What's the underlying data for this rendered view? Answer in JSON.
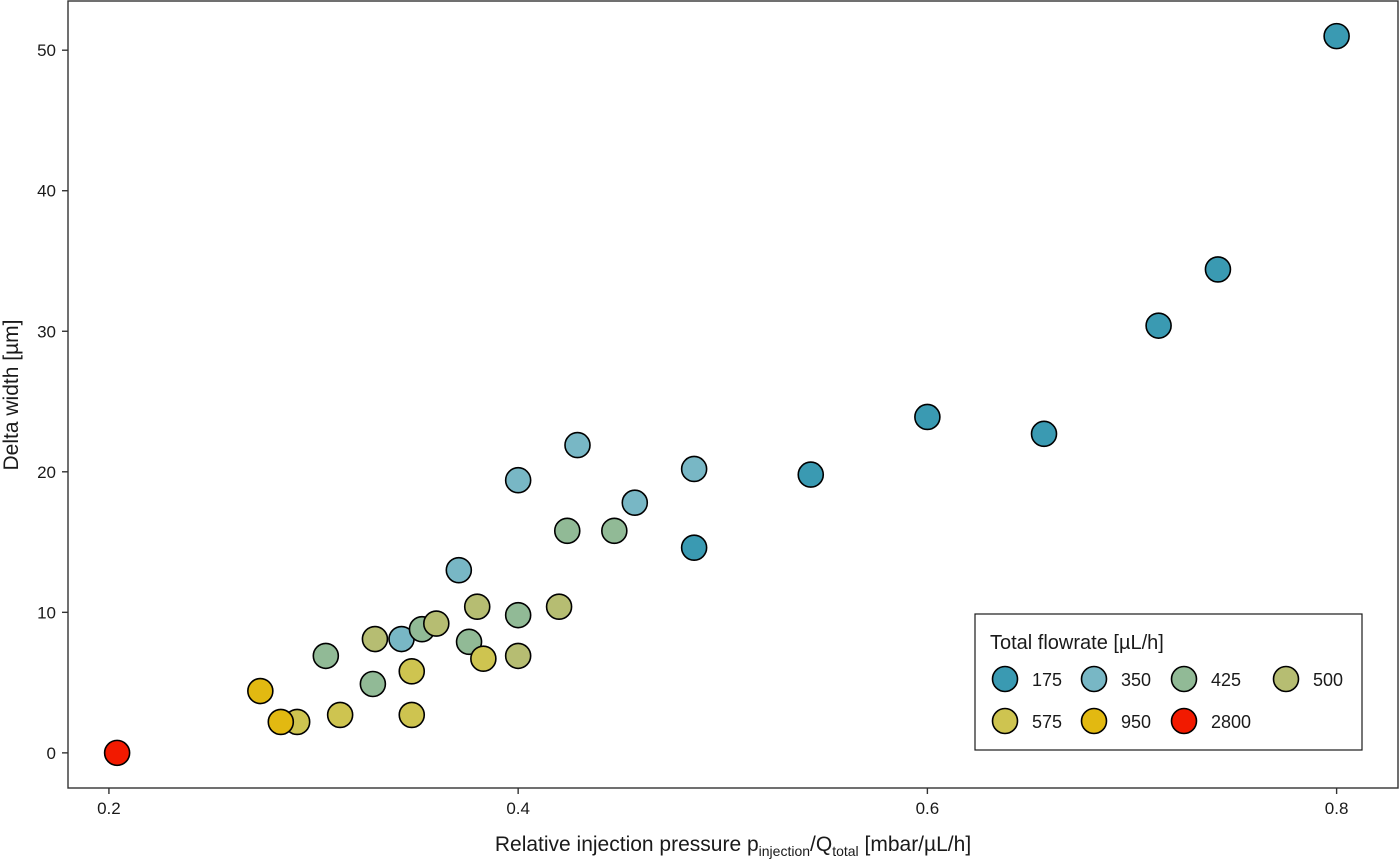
{
  "chart_data": {
    "type": "scatter",
    "title": "",
    "xlabel": {
      "prefix": "Relative injection pressure p",
      "sub1": "injection",
      "slash": "/Q",
      "sub2": "total",
      "suffix": " [mbar/µL/h]"
    },
    "ylabel": "Delta width [µm]",
    "xlim": [
      0.18,
      0.83
    ],
    "ylim": [
      -2.5,
      53.5
    ],
    "x_ticks": [
      0.2,
      0.4,
      0.6,
      0.8
    ],
    "x_tick_labels": [
      "0.2",
      "0.4",
      "0.6",
      "0.8"
    ],
    "y_ticks": [
      0,
      10,
      20,
      30,
      40,
      50
    ],
    "y_tick_labels": [
      "0",
      "10",
      "20",
      "30",
      "40",
      "50"
    ],
    "grid": false,
    "legend": {
      "title": "Total flowrate [µL/h]",
      "position": "bottom-right"
    },
    "series": [
      {
        "name": "175",
        "color": "#3a9ab2",
        "points": [
          [
            0.8,
            51.0
          ],
          [
            0.742,
            34.4
          ],
          [
            0.713,
            30.4
          ],
          [
            0.6,
            23.9
          ],
          [
            0.657,
            22.7
          ],
          [
            0.543,
            19.8
          ],
          [
            0.486,
            14.6
          ]
        ]
      },
      {
        "name": "350",
        "color": "#78b7c5",
        "points": [
          [
            0.429,
            21.9
          ],
          [
            0.486,
            20.2
          ],
          [
            0.4,
            19.4
          ],
          [
            0.457,
            17.8
          ],
          [
            0.371,
            13.0
          ],
          [
            0.343,
            8.1
          ]
        ]
      },
      {
        "name": "425",
        "color": "#91ba96",
        "points": [
          [
            0.424,
            15.8
          ],
          [
            0.447,
            15.8
          ],
          [
            0.4,
            9.8
          ],
          [
            0.353,
            8.8
          ],
          [
            0.376,
            7.9
          ],
          [
            0.306,
            6.9
          ],
          [
            0.329,
            4.9
          ]
        ]
      },
      {
        "name": "500",
        "color": "#b6bd72",
        "points": [
          [
            0.42,
            10.4
          ],
          [
            0.38,
            10.4
          ],
          [
            0.36,
            9.2
          ],
          [
            0.33,
            8.1
          ],
          [
            0.4,
            6.9
          ]
        ]
      },
      {
        "name": "575",
        "color": "#cec450",
        "points": [
          [
            0.383,
            6.7
          ],
          [
            0.348,
            5.8
          ],
          [
            0.313,
            2.7
          ],
          [
            0.348,
            2.7
          ],
          [
            0.292,
            2.2
          ]
        ]
      },
      {
        "name": "950",
        "color": "#e2b911",
        "points": [
          [
            0.274,
            4.4
          ],
          [
            0.284,
            2.2
          ]
        ]
      },
      {
        "name": "2800",
        "color": "#f21a00",
        "points": [
          [
            0.204,
            0.0
          ]
        ]
      }
    ]
  }
}
